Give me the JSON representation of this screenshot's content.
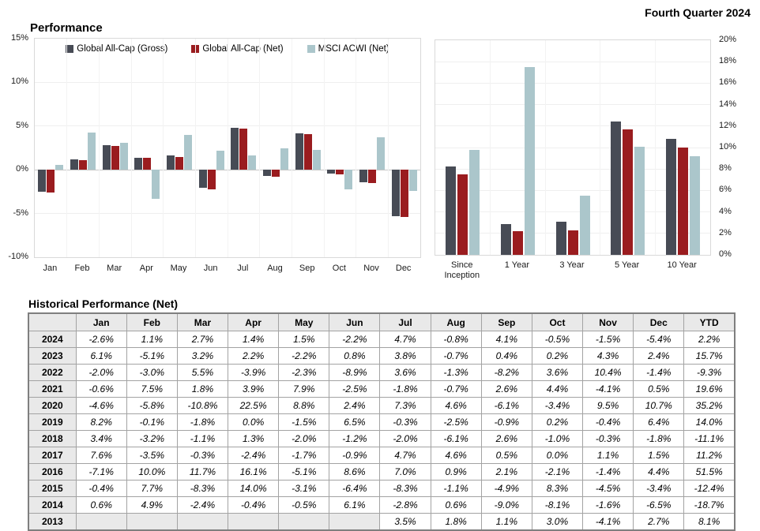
{
  "page": {
    "header_label": "Fourth Quarter 2024"
  },
  "chart_data": [
    {
      "type": "bar",
      "title": "Performance",
      "categories": [
        "Jan",
        "Feb",
        "Mar",
        "Apr",
        "May",
        "Jun",
        "Jul",
        "Aug",
        "Sep",
        "Oct",
        "Nov",
        "Dec"
      ],
      "series": [
        {
          "name": "Global All-Cap (Gross)",
          "color": "#474b55",
          "values": [
            -2.5,
            1.2,
            2.8,
            1.4,
            1.6,
            -2.1,
            4.8,
            -0.7,
            4.2,
            -0.4,
            -1.4,
            -5.3
          ]
        },
        {
          "name": "Global All-Cap (Net)",
          "color": "#9a1c1f",
          "values": [
            -2.6,
            1.1,
            2.7,
            1.4,
            1.5,
            -2.2,
            4.7,
            -0.8,
            4.1,
            -0.5,
            -1.5,
            -5.4
          ]
        },
        {
          "name": "MSCI ACWI (Net)",
          "color": "#abc6cb",
          "values": [
            0.6,
            4.3,
            3.1,
            -3.3,
            4.0,
            2.2,
            1.6,
            2.5,
            2.3,
            -2.2,
            3.7,
            -2.4
          ]
        }
      ],
      "ylim": [
        -10,
        15
      ],
      "yticks": [
        {
          "v": 15,
          "label": "15%"
        },
        {
          "v": 10,
          "label": "10%"
        },
        {
          "v": 5,
          "label": "5%"
        },
        {
          "v": 0,
          "label": "0%"
        },
        {
          "v": -5,
          "label": "-5%"
        },
        {
          "v": -10,
          "label": "-10%"
        }
      ],
      "legend_position": "top-center",
      "grid": true
    },
    {
      "type": "bar",
      "title": "",
      "categories": [
        "Since Inception",
        "1 Year",
        "3 Year",
        "5 Year",
        "10 Year"
      ],
      "series": [
        {
          "name": "Global All-Cap (Gross)",
          "color": "#474b55",
          "values": [
            8.2,
            2.9,
            3.1,
            12.4,
            10.8
          ]
        },
        {
          "name": "Global All-Cap (Net)",
          "color": "#9a1c1f",
          "values": [
            7.5,
            2.2,
            2.3,
            11.7,
            10.0
          ]
        },
        {
          "name": "MSCI ACWI (Net)",
          "color": "#abc6cb",
          "values": [
            9.8,
            17.5,
            5.5,
            10.1,
            9.2
          ]
        }
      ],
      "ylim": [
        0,
        20
      ],
      "yticks": [
        {
          "v": 20,
          "label": "20%"
        },
        {
          "v": 18,
          "label": "18%"
        },
        {
          "v": 16,
          "label": "16%"
        },
        {
          "v": 14,
          "label": "14%"
        },
        {
          "v": 12,
          "label": "12%"
        },
        {
          "v": 10,
          "label": "10%"
        },
        {
          "v": 8,
          "label": "8%"
        },
        {
          "v": 6,
          "label": "6%"
        },
        {
          "v": 4,
          "label": "4%"
        },
        {
          "v": 2,
          "label": "2%"
        },
        {
          "v": 0,
          "label": "0%"
        }
      ],
      "legend_position": "none",
      "grid": true
    },
    {
      "type": "table",
      "title": "Historical Performance (Net)",
      "columns": [
        "",
        "Jan",
        "Feb",
        "Mar",
        "Apr",
        "May",
        "Jun",
        "Jul",
        "Aug",
        "Sep",
        "Oct",
        "Nov",
        "Dec",
        "YTD"
      ],
      "rows": [
        {
          "year": "2024",
          "values": [
            "-2.6%",
            "1.1%",
            "2.7%",
            "1.4%",
            "1.5%",
            "-2.2%",
            "4.7%",
            "-0.8%",
            "4.1%",
            "-0.5%",
            "-1.5%",
            "-5.4%",
            "2.2%"
          ]
        },
        {
          "year": "2023",
          "values": [
            "6.1%",
            "-5.1%",
            "3.2%",
            "2.2%",
            "-2.2%",
            "0.8%",
            "3.8%",
            "-0.7%",
            "0.4%",
            "0.2%",
            "4.3%",
            "2.4%",
            "15.7%"
          ]
        },
        {
          "year": "2022",
          "values": [
            "-2.0%",
            "-3.0%",
            "5.5%",
            "-3.9%",
            "-2.3%",
            "-8.9%",
            "3.6%",
            "-1.3%",
            "-8.2%",
            "3.6%",
            "10.4%",
            "-1.4%",
            "-9.3%"
          ]
        },
        {
          "year": "2021",
          "values": [
            "-0.6%",
            "7.5%",
            "1.8%",
            "3.9%",
            "7.9%",
            "-2.5%",
            "-1.8%",
            "-0.7%",
            "2.6%",
            "4.4%",
            "-4.1%",
            "0.5%",
            "19.6%"
          ]
        },
        {
          "year": "2020",
          "values": [
            "-4.6%",
            "-5.8%",
            "-10.8%",
            "22.5%",
            "8.8%",
            "2.4%",
            "7.3%",
            "4.6%",
            "-6.1%",
            "-3.4%",
            "9.5%",
            "10.7%",
            "35.2%"
          ]
        },
        {
          "year": "2019",
          "values": [
            "8.2%",
            "-0.1%",
            "-1.8%",
            "0.0%",
            "-1.5%",
            "6.5%",
            "-0.3%",
            "-2.5%",
            "-0.9%",
            "0.2%",
            "-0.4%",
            "6.4%",
            "14.0%"
          ]
        },
        {
          "year": "2018",
          "values": [
            "3.4%",
            "-3.2%",
            "-1.1%",
            "1.3%",
            "-2.0%",
            "-1.2%",
            "-2.0%",
            "-6.1%",
            "2.6%",
            "-1.0%",
            "-0.3%",
            "-1.8%",
            "-11.1%"
          ]
        },
        {
          "year": "2017",
          "values": [
            "7.6%",
            "-3.5%",
            "-0.3%",
            "-2.4%",
            "-1.7%",
            "-0.9%",
            "4.7%",
            "4.6%",
            "0.5%",
            "0.0%",
            "1.1%",
            "1.5%",
            "11.2%"
          ]
        },
        {
          "year": "2016",
          "values": [
            "-7.1%",
            "10.0%",
            "11.7%",
            "16.1%",
            "-5.1%",
            "8.6%",
            "7.0%",
            "0.9%",
            "2.1%",
            "-2.1%",
            "-1.4%",
            "4.4%",
            "51.5%"
          ]
        },
        {
          "year": "2015",
          "values": [
            "-0.4%",
            "7.7%",
            "-8.3%",
            "14.0%",
            "-3.1%",
            "-6.4%",
            "-8.3%",
            "-1.1%",
            "-4.9%",
            "8.3%",
            "-4.5%",
            "-3.4%",
            "-12.4%"
          ]
        },
        {
          "year": "2014",
          "values": [
            "0.6%",
            "4.9%",
            "-2.4%",
            "-0.4%",
            "-0.5%",
            "6.1%",
            "-2.8%",
            "0.6%",
            "-9.0%",
            "-8.1%",
            "-1.6%",
            "-6.5%",
            "-18.7%"
          ]
        },
        {
          "year": "2013",
          "values": [
            "",
            "",
            "",
            "",
            "",
            "",
            "3.5%",
            "1.8%",
            "1.1%",
            "3.0%",
            "-4.1%",
            "2.7%",
            "8.1%"
          ]
        }
      ]
    }
  ]
}
